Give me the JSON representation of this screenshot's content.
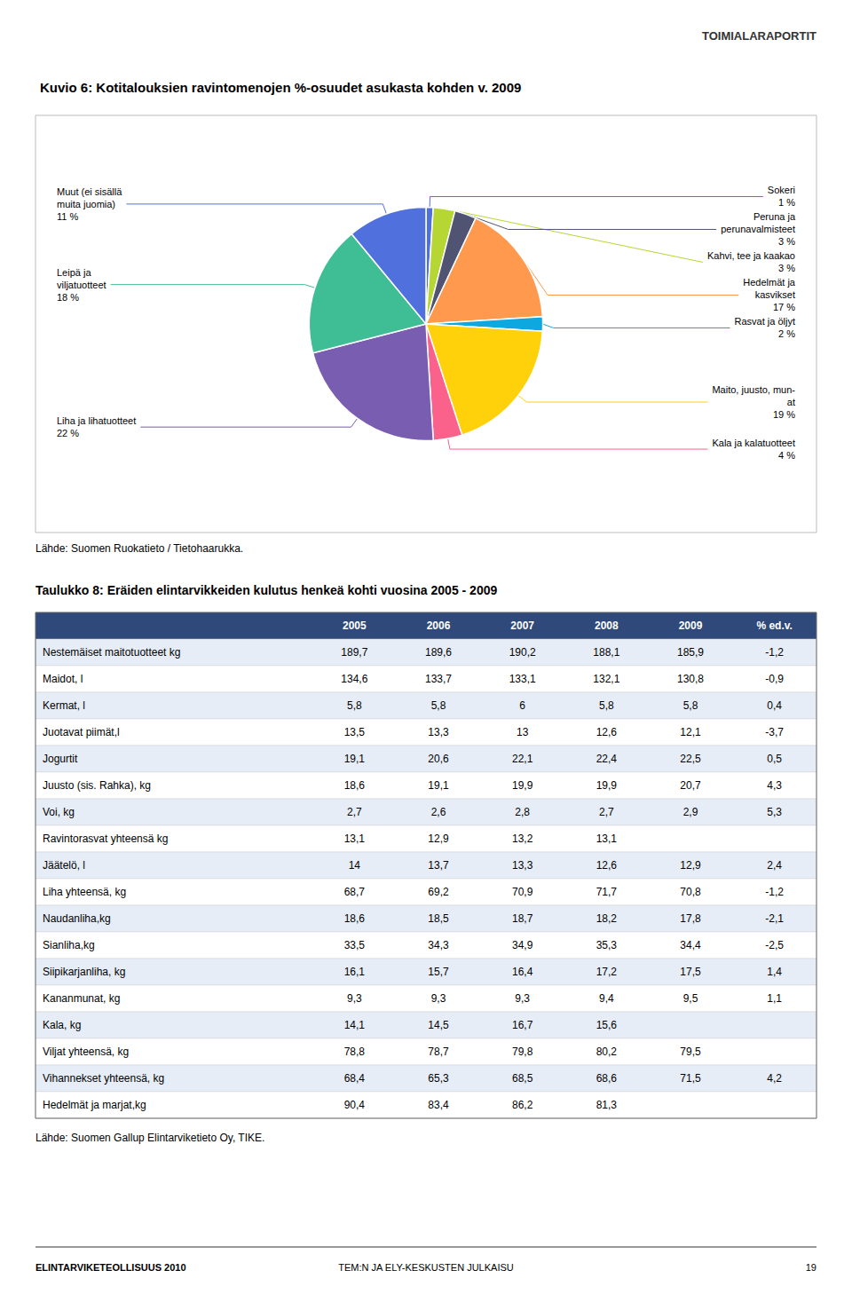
{
  "chart_data": [
    {
      "type": "pie",
      "title": "Kuvio 6: Kotitalouksien ravintomenojen %-osuudet asukasta kohden v. 2009",
      "categories": [
        "Sokeri",
        "Kahvi, tee ja kaakao",
        "Peruna ja\nperunavalmisteet",
        "Hedelmät ja\nkasvikset",
        "Rasvat ja öljyt",
        "Maito, juusto, mun-\nat",
        "Kala ja kalatuotteet",
        "Liha ja lihatuotteet",
        "Leipä ja\nviljatuotteet",
        "Muut (ei sisällä\nmuita juomia)"
      ],
      "values": [
        1,
        3,
        3,
        17,
        2,
        19,
        4,
        22,
        18,
        11
      ],
      "value_labels": [
        "1 %",
        "3 %",
        "3 %",
        "17 %",
        "2 %",
        "19 %",
        "4 %",
        "22 %",
        "18 %",
        "11 %"
      ],
      "data_labels": true,
      "annotations": [
        "Lähde: Suomen Ruokatieto / Tietohaarukka.",
        "TOIMIALARAPORTIT"
      ]
    },
    {
      "type": "table",
      "title": "Taulukko 8: Eräiden elintarvikkeiden kulutus henkeä kohti vuosina 2005 - 2009",
      "columns": [
        null,
        "2005",
        "2006",
        "2007",
        "2008",
        "2009",
        "% ed.v."
      ],
      "rows": [
        [
          "Nestemäiset maitotuotteet kg",
          "189,7",
          "189,6",
          "190,2",
          "188,1",
          "185,9",
          "-1,2"
        ],
        [
          "Maidot, l",
          "134,6",
          "133,7",
          "133,1",
          "132,1",
          "130,8",
          "-0,9"
        ],
        [
          "Kermat, l",
          "5,8",
          "5,8",
          "6",
          "5,8",
          "5,8",
          "0,4"
        ],
        [
          "Juotavat piimät,l",
          "13,5",
          "13,3",
          "13",
          "12,6",
          "12,1",
          "-3,7"
        ],
        [
          "Jogurtit",
          "19,1",
          "20,6",
          "22,1",
          "22,4",
          "22,5",
          "0,5"
        ],
        [
          "Juusto (sis. Rahka), kg",
          "18,6",
          "19,1",
          "19,9",
          "19,9",
          "20,7",
          "4,3"
        ],
        [
          "Voi, kg",
          "2,7",
          "2,6",
          "2,8",
          "2,7",
          "2,9",
          "5,3"
        ],
        [
          "Ravintorasvat yhteensä kg",
          "13,1",
          "12,9",
          "13,2",
          "13,1",
          null,
          null
        ],
        [
          "Jäätelö, l",
          "14",
          "13,7",
          "13,3",
          "12,6",
          "12,9",
          "2,4"
        ],
        [
          "Liha yhteensä, kg",
          "68,7",
          "69,2",
          "70,9",
          "71,7",
          "70,8",
          "-1,2"
        ],
        [
          "Naudanliha,kg",
          "18,6",
          "18,5",
          "18,7",
          "18,2",
          "17,8",
          "-2,1"
        ],
        [
          "Sianliha,kg",
          "33,5",
          "34,3",
          "34,9",
          "35,3",
          "34,4",
          "-2,5"
        ],
        [
          "Siipikarjanliha, kg",
          "16,1",
          "15,7",
          "16,4",
          "17,2",
          "17,5",
          "1,4"
        ],
        [
          "Kananmunat, kg",
          "9,3",
          "9,3",
          "9,3",
          "9,4",
          "9,5",
          "1,1"
        ],
        [
          "Kala, kg",
          "14,1",
          "14,5",
          "16,7",
          "15,6",
          null,
          null
        ],
        [
          "Viljat yhteensä, kg",
          "78,8",
          "78,7",
          "79,8",
          "80,2",
          "79,5",
          null
        ],
        [
          "Vihannekset yhteensä, kg",
          "68,4",
          "65,3",
          "68,5",
          "68,6",
          "71,5",
          "4,2"
        ],
        [
          "Hedelmät ja marjat,kg",
          "90,4",
          "83,4",
          "86,2",
          "81,3",
          null,
          null
        ]
      ],
      "annotations": [
        "Lähde: Suomen Gallup Elintarviketieto Oy, TIKE.",
        "ELINTARVIKETEOLLISUUS 2010",
        "TEM:N JA ELY-KESKUSTEN JULKAISU",
        "19"
      ]
    }
  ]
}
